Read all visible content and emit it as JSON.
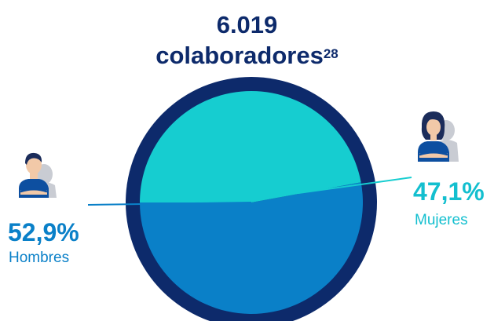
{
  "header": {
    "total": "6.019",
    "unit": "colaboradores",
    "footnote": "28"
  },
  "chart_data": {
    "type": "pie",
    "title": "6.019 colaboradores",
    "slices": [
      {
        "label": "Hombres",
        "value": 52.9,
        "display": "52,9%",
        "color": "#0a80c8"
      },
      {
        "label": "Mujeres",
        "value": 47.1,
        "display": "47,1%",
        "color": "#16cdd0"
      }
    ],
    "ring_color": "#0d2a6b"
  },
  "labels": {
    "men": {
      "pct": "52,9%",
      "name": "Hombres",
      "icon": "man-avatar-icon"
    },
    "women": {
      "pct": "47,1%",
      "name": "Mujeres",
      "icon": "woman-avatar-icon"
    }
  }
}
